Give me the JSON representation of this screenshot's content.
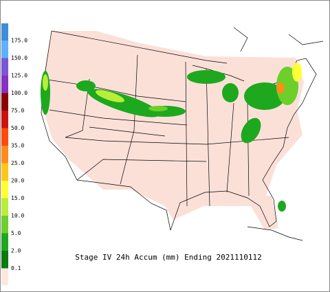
{
  "legend": {
    "labels": [
      "175.0",
      "150.0",
      "125.0",
      "100.0",
      "75.0",
      "50.0",
      "35.0",
      "25.0",
      "20.0",
      "15.0",
      "10.0",
      "5.0",
      "2.0",
      "0.1"
    ],
    "colors": [
      "#3d8ddb",
      "#5fb0ff",
      "#7a56d8",
      "#8a2fc4",
      "#8b0000",
      "#d01010",
      "#ff4a0a",
      "#ff8c1a",
      "#ffc61a",
      "#ffff33",
      "#b8ee3a",
      "#6ccf2a",
      "#1ea81e",
      "#0b7a10",
      "#ffe6e0"
    ]
  },
  "caption": "Stage IV 24h Accum (mm) Ending 2021110112"
}
